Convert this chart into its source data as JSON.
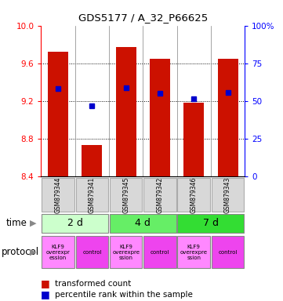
{
  "title": "GDS5177 / A_32_P66625",
  "samples": [
    "GSM879344",
    "GSM879341",
    "GSM879345",
    "GSM879342",
    "GSM879346",
    "GSM879343"
  ],
  "bar_bottoms": [
    8.4,
    8.4,
    8.4,
    8.4,
    8.4,
    8.4
  ],
  "bar_tops": [
    9.72,
    8.73,
    9.77,
    9.65,
    9.18,
    9.65
  ],
  "blue_y": [
    9.33,
    9.15,
    9.34,
    9.28,
    9.22,
    9.29
  ],
  "ylim_left": [
    8.4,
    10.0
  ],
  "ylim_right": [
    0,
    100
  ],
  "left_ticks": [
    8.4,
    8.8,
    9.2,
    9.6,
    10.0
  ],
  "right_ticks": [
    0,
    25,
    50,
    75,
    100
  ],
  "time_groups": [
    {
      "label": "2 d",
      "cols": [
        0,
        1
      ],
      "color": "#ccffcc"
    },
    {
      "label": "4 d",
      "cols": [
        2,
        3
      ],
      "color": "#66ee66"
    },
    {
      "label": "7 d",
      "cols": [
        4,
        5
      ],
      "color": "#33dd33"
    }
  ],
  "protocol_groups": [
    {
      "label": "KLF9\noverexpr\nession",
      "col": 0,
      "color": "#ff88ff"
    },
    {
      "label": "control",
      "col": 1,
      "color": "#ee44ee"
    },
    {
      "label": "KLF9\noverexpre\nssion",
      "col": 2,
      "color": "#ff88ff"
    },
    {
      "label": "control",
      "col": 3,
      "color": "#ee44ee"
    },
    {
      "label": "KLF9\noverexpre\nssion",
      "col": 4,
      "color": "#ff88ff"
    },
    {
      "label": "control",
      "col": 5,
      "color": "#ee44ee"
    }
  ],
  "bar_color": "#cc1100",
  "blue_color": "#0000cc",
  "bg_color": "#ffffff",
  "legend_red_label": "transformed count",
  "legend_blue_label": "percentile rank within the sample"
}
